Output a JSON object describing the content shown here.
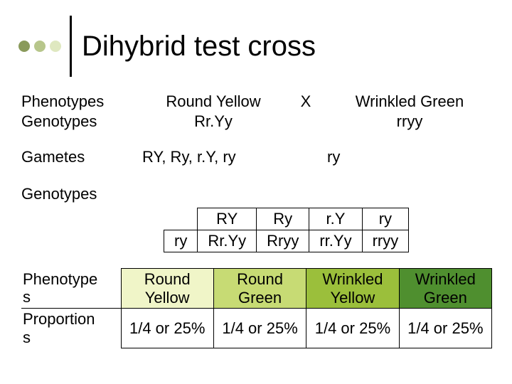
{
  "header": {
    "title": "Dihybrid test cross",
    "dot_colors": [
      "#8a9a5b",
      "#b7c68b",
      "#dfe8c0"
    ],
    "bar_color": "#000000"
  },
  "cross": {
    "phenotypes_label": "Phenotypes",
    "genotypes_label": "Genotypes",
    "gametes_label": "Gametes",
    "x_symbol": "X",
    "parent1": {
      "phenotype": "Round Yellow",
      "genotype": "Rr.Yy",
      "gametes": "RY, Ry, r.Y, ry"
    },
    "parent2": {
      "phenotype": "Wrinkled Green",
      "genotype": "rryy",
      "gametes": "ry"
    }
  },
  "punnett": {
    "label": "Genotypes",
    "columns": [
      "RY",
      "Ry",
      "r.Y",
      "ry"
    ],
    "row_label": "ry",
    "cells": [
      "Rr.Yy",
      "Rryy",
      "rr.Yy",
      "rryy"
    ]
  },
  "results": {
    "row1_label": "Phenotype\ns",
    "row2_label": "Proportion\ns",
    "phenotypes": [
      "Round\nYellow",
      "Round\nGreen",
      "Wrinkled\nYellow",
      "Wrinkled\nGreen"
    ],
    "proportions": [
      "1/4 or 25%",
      "1/4 or 25%",
      "1/4 or 25%",
      "1/4 or 25%"
    ],
    "fill_colors": [
      "#f0f5c8",
      "#c7db74",
      "#9bbf3b",
      "#4f8f2f"
    ]
  }
}
